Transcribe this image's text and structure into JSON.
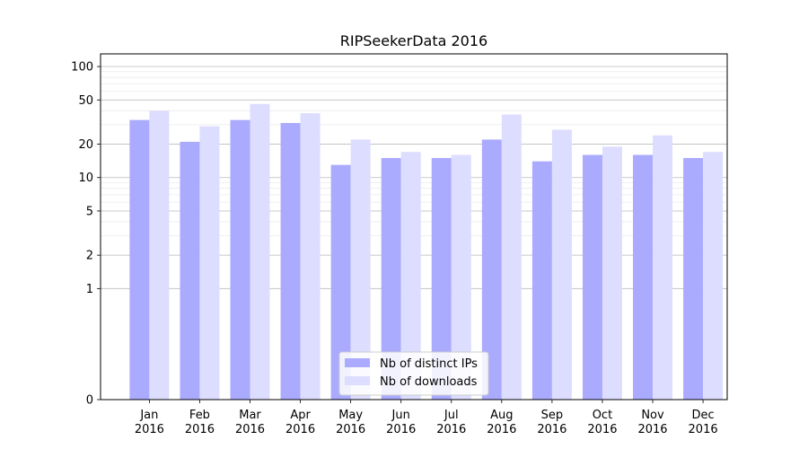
{
  "chart_data": {
    "type": "bar",
    "title": "RIPSeekerData 2016",
    "xlabel": "",
    "ylabel": "",
    "yscale": "symlog",
    "ylim": [
      0,
      130
    ],
    "yticks": [
      0,
      1,
      2,
      5,
      10,
      20,
      50,
      100
    ],
    "grid": true,
    "legend_position": "lower center",
    "categories": [
      "Jan\n2016",
      "Feb\n2016",
      "Mar\n2016",
      "Apr\n2016",
      "May\n2016",
      "Jun\n2016",
      "Jul\n2016",
      "Aug\n2016",
      "Sep\n2016",
      "Oct\n2016",
      "Nov\n2016",
      "Dec\n2016"
    ],
    "series": [
      {
        "name": "Nb of distinct IPs",
        "color": "#aaaaff",
        "values": [
          33,
          21,
          33,
          31,
          13,
          15,
          15,
          22,
          14,
          16,
          16,
          15
        ]
      },
      {
        "name": "Nb of downloads",
        "color": "#ddddff",
        "values": [
          40,
          29,
          46,
          38,
          22,
          17,
          16,
          37,
          27,
          19,
          24,
          17
        ]
      }
    ]
  }
}
